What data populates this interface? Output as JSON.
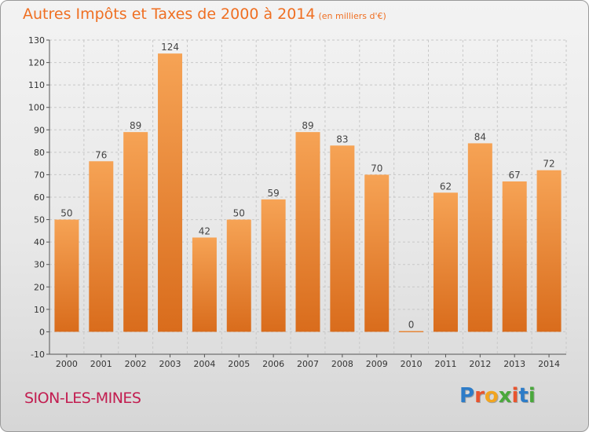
{
  "title": "Autres Impôts et Taxes de 2000 à 2014",
  "unit": "(en milliers d'€)",
  "place": "SION-LES-MINES",
  "logo": {
    "letters": [
      "P",
      "r",
      "o",
      "x",
      "i",
      "t",
      "i"
    ],
    "colors": [
      "#2d7cc8",
      "#e8542e",
      "#f2a51f",
      "#4aa83c",
      "#e8542e",
      "#2d7cc8",
      "#4aa83c"
    ]
  },
  "colors": {
    "bar_top": "#f6a355",
    "bar_bottom": "#d96c1c",
    "title": "#ef6f22",
    "place": "#c21d50"
  },
  "chart_data": {
    "type": "bar",
    "categories": [
      "2000",
      "2001",
      "2002",
      "2003",
      "2004",
      "2005",
      "2006",
      "2007",
      "2008",
      "2009",
      "2010",
      "2011",
      "2012",
      "2013",
      "2014"
    ],
    "values": [
      50,
      76,
      89,
      124,
      42,
      50,
      59,
      89,
      83,
      70,
      0,
      62,
      84,
      67,
      72
    ],
    "data_labels": [
      "50",
      "76",
      "89",
      "124",
      "42",
      "50",
      "59",
      "89",
      "83",
      "70",
      "0",
      "62",
      "84",
      "67",
      "72"
    ],
    "ylim": [
      -10,
      130
    ],
    "yticks": [
      -10,
      0,
      10,
      20,
      30,
      40,
      50,
      60,
      70,
      80,
      90,
      100,
      110,
      120,
      130
    ],
    "grid": true,
    "xlabel": "",
    "ylabel": ""
  }
}
